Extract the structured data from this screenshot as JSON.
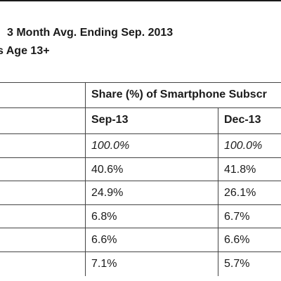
{
  "heading": {
    "line1": "3 Month Avg. Ending Sep. 2013",
    "line2": "s Age 13+"
  },
  "table": {
    "group_header": "Share (%) of Smartphone Subscr",
    "columns": [
      "Sep-13",
      "Dec-13"
    ],
    "rows": [
      {
        "sep": "100.0%",
        "dec": "100.0%",
        "italic": true
      },
      {
        "sep": "40.6%",
        "dec": "41.8%",
        "italic": false
      },
      {
        "sep": "24.9%",
        "dec": "26.1%",
        "italic": false
      },
      {
        "sep": "6.8%",
        "dec": "6.7%",
        "italic": false
      },
      {
        "sep": "6.6%",
        "dec": "6.6%",
        "italic": false
      },
      {
        "sep": "7.1%",
        "dec": "5.7%",
        "italic": false
      }
    ]
  }
}
